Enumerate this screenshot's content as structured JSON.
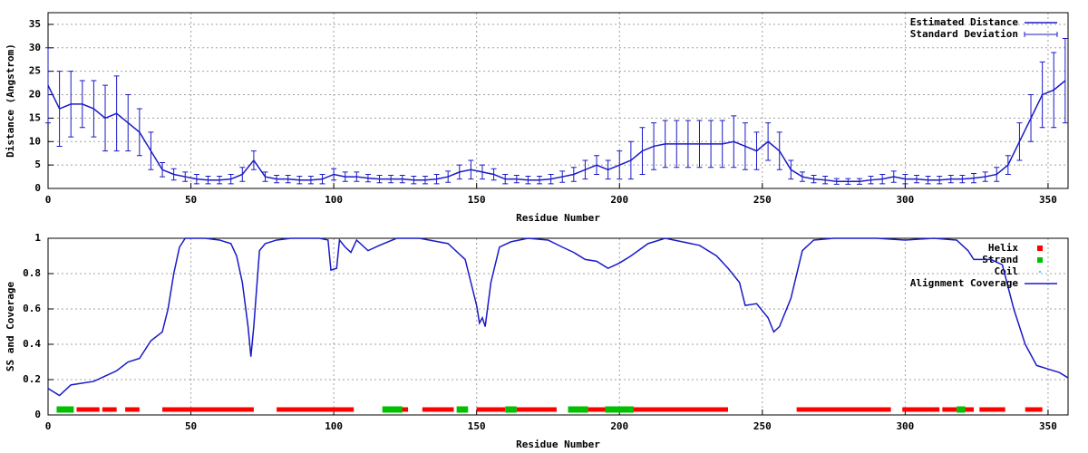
{
  "chart_data": [
    {
      "type": "line",
      "xlabel": "Residue Number",
      "ylabel": "Distance (Angstrom)",
      "xlim": [
        0,
        357
      ],
      "xticks": [
        0,
        50,
        100,
        150,
        200,
        250,
        300,
        350
      ],
      "ylim": [
        0,
        37.5
      ],
      "yticks": [
        0,
        5,
        10,
        15,
        20,
        25,
        30,
        35
      ],
      "grid": true,
      "legend": "top-right",
      "x": [
        0,
        4,
        8,
        12,
        16,
        20,
        24,
        28,
        32,
        36,
        40,
        44,
        48,
        52,
        56,
        60,
        64,
        68,
        72,
        76,
        80,
        84,
        88,
        92,
        96,
        100,
        104,
        108,
        112,
        116,
        120,
        124,
        128,
        132,
        136,
        140,
        144,
        148,
        152,
        156,
        160,
        164,
        168,
        172,
        176,
        180,
        184,
        188,
        192,
        196,
        200,
        204,
        208,
        212,
        216,
        220,
        224,
        228,
        232,
        236,
        240,
        244,
        248,
        252,
        256,
        260,
        264,
        268,
        272,
        276,
        280,
        284,
        288,
        292,
        296,
        300,
        304,
        308,
        312,
        316,
        320,
        324,
        328,
        332,
        336,
        340,
        344,
        348,
        352,
        356
      ],
      "series": [
        {
          "name": "Estimated Distance",
          "color": "#1a1ac8",
          "values": [
            22,
            17,
            18,
            18,
            17,
            15,
            16,
            14,
            12,
            8,
            4,
            3,
            2.5,
            2,
            1.8,
            1.8,
            2,
            3,
            6,
            2.5,
            2,
            2,
            1.8,
            1.8,
            2,
            3,
            2.5,
            2.5,
            2.2,
            2,
            2,
            2,
            1.8,
            1.8,
            2,
            2.5,
            3.5,
            4,
            3.5,
            3,
            2,
            2,
            1.8,
            1.8,
            2,
            2.5,
            3,
            4,
            5,
            4,
            5,
            6,
            8,
            9,
            9.5,
            9.5,
            9.5,
            9.5,
            9.5,
            9.5,
            10,
            9,
            8,
            10,
            8,
            4,
            2.5,
            2,
            1.8,
            1.5,
            1.5,
            1.5,
            1.8,
            2,
            2.5,
            2,
            2,
            1.8,
            1.8,
            2,
            2,
            2.2,
            2.5,
            3,
            5,
            10,
            15,
            20,
            21,
            23
          ]
        }
      ],
      "error_bars": {
        "name": "Standard Deviation",
        "color": "#1a1ac8",
        "values": [
          8,
          8,
          7,
          5,
          6,
          7,
          8,
          6,
          5,
          4,
          1.5,
          1.2,
          1,
          1,
          0.8,
          0.8,
          1,
          1.5,
          2,
          1,
          0.8,
          0.8,
          0.8,
          0.8,
          1,
          1.2,
          1,
          1,
          0.8,
          0.8,
          0.8,
          0.8,
          0.8,
          0.8,
          1,
          1.2,
          1.5,
          2,
          1.5,
          1.2,
          1,
          0.8,
          0.8,
          0.8,
          1,
          1.2,
          1.5,
          2,
          2,
          2,
          3,
          4,
          5,
          5,
          5,
          5,
          5,
          5,
          5,
          5,
          5.5,
          5,
          4,
          4,
          4,
          2,
          1,
          0.8,
          0.8,
          0.6,
          0.6,
          0.6,
          0.8,
          1,
          1.2,
          1,
          0.8,
          0.8,
          0.8,
          0.8,
          0.8,
          1,
          1,
          1.5,
          2,
          4,
          5,
          7,
          8,
          9
        ]
      }
    },
    {
      "type": "line",
      "xlabel": "Residue Number",
      "ylabel": "SS and Coverage",
      "xlim": [
        0,
        357
      ],
      "xticks": [
        0,
        50,
        100,
        150,
        200,
        250,
        300,
        350
      ],
      "ylim": [
        0,
        1
      ],
      "yticks": [
        0,
        0.2,
        0.4,
        0.6,
        0.8,
        1
      ],
      "grid": true,
      "legend": "top-right",
      "x": [
        0,
        4,
        8,
        12,
        16,
        20,
        24,
        28,
        32,
        36,
        40,
        42,
        44,
        46,
        48,
        55,
        60,
        64,
        66,
        68,
        70,
        71,
        72,
        74,
        76,
        80,
        85,
        95,
        98,
        99,
        101,
        102,
        104,
        106,
        108,
        112,
        116,
        122,
        130,
        140,
        146,
        148,
        150,
        151,
        152,
        153,
        155,
        158,
        162,
        168,
        175,
        180,
        184,
        188,
        192,
        196,
        200,
        204,
        210,
        216,
        222,
        228,
        234,
        238,
        242,
        244,
        248,
        252,
        254,
        256,
        260,
        264,
        268,
        275,
        290,
        300,
        310,
        318,
        322,
        324,
        330,
        334,
        338,
        342,
        346,
        350,
        354,
        357
      ],
      "series": [
        {
          "name": "Alignment Coverage",
          "color": "#1a1ac8",
          "values": [
            0.15,
            0.11,
            0.17,
            0.18,
            0.19,
            0.22,
            0.25,
            0.3,
            0.32,
            0.42,
            0.47,
            0.6,
            0.8,
            0.95,
            1,
            1,
            0.99,
            0.97,
            0.9,
            0.75,
            0.5,
            0.33,
            0.5,
            0.93,
            0.97,
            0.99,
            1,
            1,
            0.99,
            0.82,
            0.83,
            0.99,
            0.95,
            0.92,
            0.99,
            0.93,
            0.96,
            1,
            1,
            0.97,
            0.88,
            0.75,
            0.62,
            0.52,
            0.55,
            0.5,
            0.75,
            0.95,
            0.98,
            1,
            0.99,
            0.95,
            0.92,
            0.88,
            0.87,
            0.83,
            0.86,
            0.9,
            0.97,
            1,
            0.98,
            0.96,
            0.9,
            0.83,
            0.75,
            0.62,
            0.63,
            0.55,
            0.47,
            0.5,
            0.66,
            0.93,
            0.99,
            1,
            1,
            0.99,
            1,
            0.99,
            0.93,
            0.88,
            0.88,
            0.85,
            0.6,
            0.4,
            0.28,
            0.26,
            0.24,
            0.21
          ]
        }
      ],
      "ss_tracks": [
        {
          "name": "Helix",
          "color": "#ff0000",
          "ranges": [
            [
              10,
              18
            ],
            [
              19,
              24
            ],
            [
              27,
              32
            ],
            [
              40,
              72
            ],
            [
              80,
              107
            ],
            [
              123,
              126
            ],
            [
              131,
              142
            ],
            [
              150,
              160
            ],
            [
              164,
              178
            ],
            [
              189,
              195
            ],
            [
              205,
              238
            ],
            [
              262,
              295
            ],
            [
              299,
              312
            ],
            [
              313,
              318
            ],
            [
              321,
              324
            ],
            [
              326,
              335
            ],
            [
              342,
              348
            ]
          ]
        },
        {
          "name": "Strand",
          "color": "#00c000",
          "ranges": [
            [
              3,
              9
            ],
            [
              117,
              124
            ],
            [
              143,
              147
            ],
            [
              160,
              164
            ],
            [
              182,
              189
            ],
            [
              195,
              205
            ],
            [
              318,
              321
            ]
          ]
        },
        {
          "name": "Coil",
          "color": "#0080ff"
        }
      ]
    }
  ]
}
